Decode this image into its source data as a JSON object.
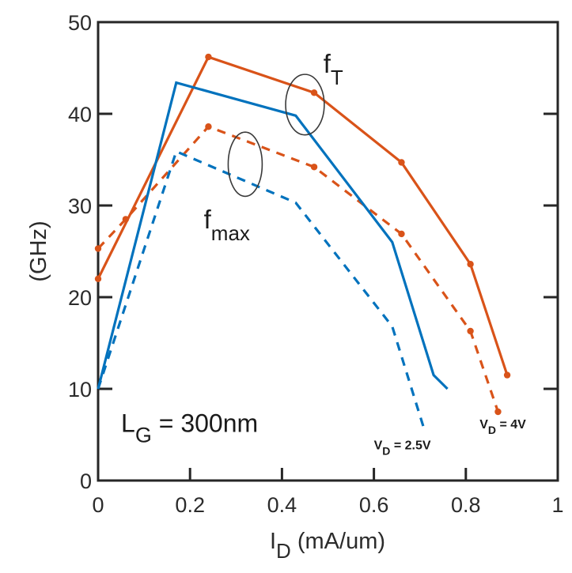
{
  "chart_data": {
    "type": "line",
    "title": "",
    "xlabel": "I",
    "xlabel_sub": "D",
    "xlabel_unit": " (mA/um)",
    "ylabel": "(GHz)",
    "xlim": [
      0,
      1
    ],
    "ylim": [
      0,
      50
    ],
    "xticks": [
      0,
      0.2,
      0.4,
      0.6,
      0.8,
      1
    ],
    "xtick_labels": [
      "0",
      "0.2",
      "0.4",
      "0.6",
      "0.8",
      "1"
    ],
    "yticks": [
      0,
      10,
      20,
      30,
      40,
      50
    ],
    "ytick_labels": [
      "0",
      "10",
      "20",
      "30",
      "40",
      "50"
    ],
    "grid": false,
    "series": [
      {
        "name": "fT, VD = 4V",
        "metric": "fT",
        "vd": "4V",
        "color": "#d95319",
        "style": "solid",
        "markers": true,
        "x": [
          0,
          0.24,
          0.47,
          0.66,
          0.81,
          0.89
        ],
        "y": [
          22.0,
          46.2,
          42.3,
          34.7,
          23.6,
          11.5
        ]
      },
      {
        "name": "fmax, VD = 4V",
        "metric": "fmax",
        "vd": "4V",
        "color": "#d95319",
        "style": "dashed",
        "markers": true,
        "x": [
          0,
          0.06,
          0.24,
          0.47,
          0.66,
          0.81,
          0.87
        ],
        "y": [
          25.3,
          28.5,
          38.6,
          34.2,
          26.9,
          16.3,
          7.5
        ]
      },
      {
        "name": "fT, VD = 2.5V",
        "metric": "fT",
        "vd": "2.5V",
        "color": "#0072bd",
        "style": "solid",
        "markers": false,
        "x": [
          0,
          0.17,
          0.43,
          0.64,
          0.73,
          0.76
        ],
        "y": [
          10.0,
          43.4,
          39.8,
          26.0,
          11.5,
          10.0
        ]
      },
      {
        "name": "fmax, VD = 2.5V",
        "metric": "fmax",
        "vd": "2.5V",
        "color": "#0072bd",
        "style": "dashed",
        "markers": false,
        "x": [
          0,
          0.17,
          0.43,
          0.64,
          0.71
        ],
        "y": [
          10.0,
          35.9,
          30.3,
          16.8,
          5.5
        ]
      }
    ],
    "annotations": [
      {
        "id": "ft-label",
        "main": "f",
        "sub": "T",
        "x": 0.49,
        "y": 44.5
      },
      {
        "id": "fmax-label",
        "main": "f",
        "sub": "max",
        "x": 0.23,
        "y": 27.5
      },
      {
        "id": "lg-label",
        "main": "L",
        "sub": "G",
        "suffix": " = 300nm",
        "x": 0.05,
        "y": 5.3
      },
      {
        "id": "vd25-label",
        "main": "V",
        "sub": "D",
        "suffix": " = 2.5V",
        "color": "#0072bd",
        "x": 0.6,
        "y": 3.4
      },
      {
        "id": "vd4-label",
        "main": "V",
        "sub": "D",
        "suffix": " = 4V",
        "color": "#d95319",
        "x": 0.83,
        "y": 5.7
      }
    ],
    "ellipses": [
      {
        "id": "ft-ellipse",
        "cx": 0.45,
        "cy": 41.0,
        "rx": 0.042,
        "ry": 3.3
      },
      {
        "id": "fmax-ellipse",
        "cx": 0.32,
        "cy": 34.5,
        "rx": 0.037,
        "ry": 3.5
      }
    ]
  }
}
